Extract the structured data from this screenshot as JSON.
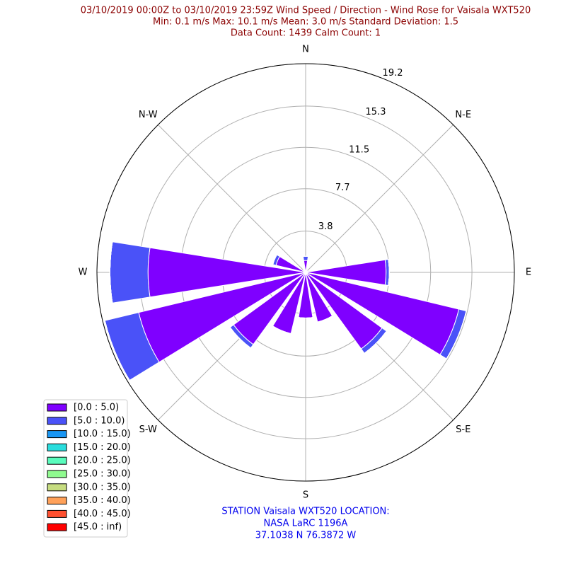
{
  "chart_data": {
    "type": "windrose",
    "title": [
      "03/10/2019 00:00Z to 03/10/2019 23:59Z Wind Speed / Direction - Wind Rose for Vaisala WXT520",
      "Min: 0.1 m/s   Max: 10.1 m/s   Mean: 3.0 m/s  Standard Deviation: 1.5",
      "Data Count: 1439  Calm Count:  1"
    ],
    "annotation": [
      "STATION Vaisala WXT520 LOCATION:",
      "NASA LaRC 1196A",
      "37.1038 N 76.3872 W"
    ],
    "categories": [
      "N",
      null,
      "N-E",
      null,
      "E",
      null,
      "S-E",
      null,
      "S",
      null,
      "S-W",
      null,
      "W",
      null,
      "N-W",
      null
    ],
    "rlim": [
      0,
      19.2
    ],
    "rticks": [
      3.8,
      7.7,
      11.5,
      15.3,
      19.2
    ],
    "grid": true,
    "legend": "lower left",
    "series": [
      {
        "name": "[0.0 : 5.0)",
        "color": "#7f00ff",
        "values": [
          1.1,
          0.3,
          0.2,
          0.3,
          7.4,
          14.5,
          8.7,
          4.7,
          4.2,
          5.8,
          8.2,
          15.8,
          14.5,
          2.8,
          0.3,
          0.2
        ]
      },
      {
        "name": "[5.0 : 10.0)",
        "color": "#4a52f8",
        "values": [
          0.4,
          0,
          0,
          0,
          0.3,
          0.7,
          0.5,
          0,
          0,
          0,
          0.4,
          3.2,
          3.5,
          0.3,
          0,
          0
        ]
      },
      {
        "name": "[10.0 : 15.0)",
        "color": "#1996f3",
        "values": [
          0,
          0,
          0,
          0,
          0,
          0,
          0,
          0,
          0,
          0,
          0,
          0,
          0,
          0,
          0,
          0
        ]
      },
      {
        "name": "[15.0 : 20.0)",
        "color": "#2adddd",
        "values": [
          0,
          0,
          0,
          0,
          0,
          0,
          0,
          0,
          0,
          0,
          0,
          0,
          0,
          0,
          0,
          0
        ]
      },
      {
        "name": "[20.0 : 25.0)",
        "color": "#5afcbd",
        "values": [
          0,
          0,
          0,
          0,
          0,
          0,
          0,
          0,
          0,
          0,
          0,
          0,
          0,
          0,
          0,
          0
        ]
      },
      {
        "name": "[25.0 : 30.0)",
        "color": "#90fb90",
        "values": [
          0,
          0,
          0,
          0,
          0,
          0,
          0,
          0,
          0,
          0,
          0,
          0,
          0,
          0,
          0,
          0
        ]
      },
      {
        "name": "[30.0 : 35.0)",
        "color": "#c6dc80",
        "values": [
          0,
          0,
          0,
          0,
          0,
          0,
          0,
          0,
          0,
          0,
          0,
          0,
          0,
          0,
          0,
          0
        ]
      },
      {
        "name": "[35.0 : 40.0)",
        "color": "#ffa15a",
        "values": [
          0,
          0,
          0,
          0,
          0,
          0,
          0,
          0,
          0,
          0,
          0,
          0,
          0,
          0,
          0,
          0
        ]
      },
      {
        "name": "[40.0 : 45.0)",
        "color": "#ff5030",
        "values": [
          0,
          0,
          0,
          0,
          0,
          0,
          0,
          0,
          0,
          0,
          0,
          0,
          0,
          0,
          0,
          0
        ]
      },
      {
        "name": "[45.0 : inf)",
        "color": "#ff0000",
        "values": [
          0,
          0,
          0,
          0,
          0,
          0,
          0,
          0,
          0,
          0,
          0,
          0,
          0,
          0,
          0,
          0
        ]
      }
    ]
  }
}
